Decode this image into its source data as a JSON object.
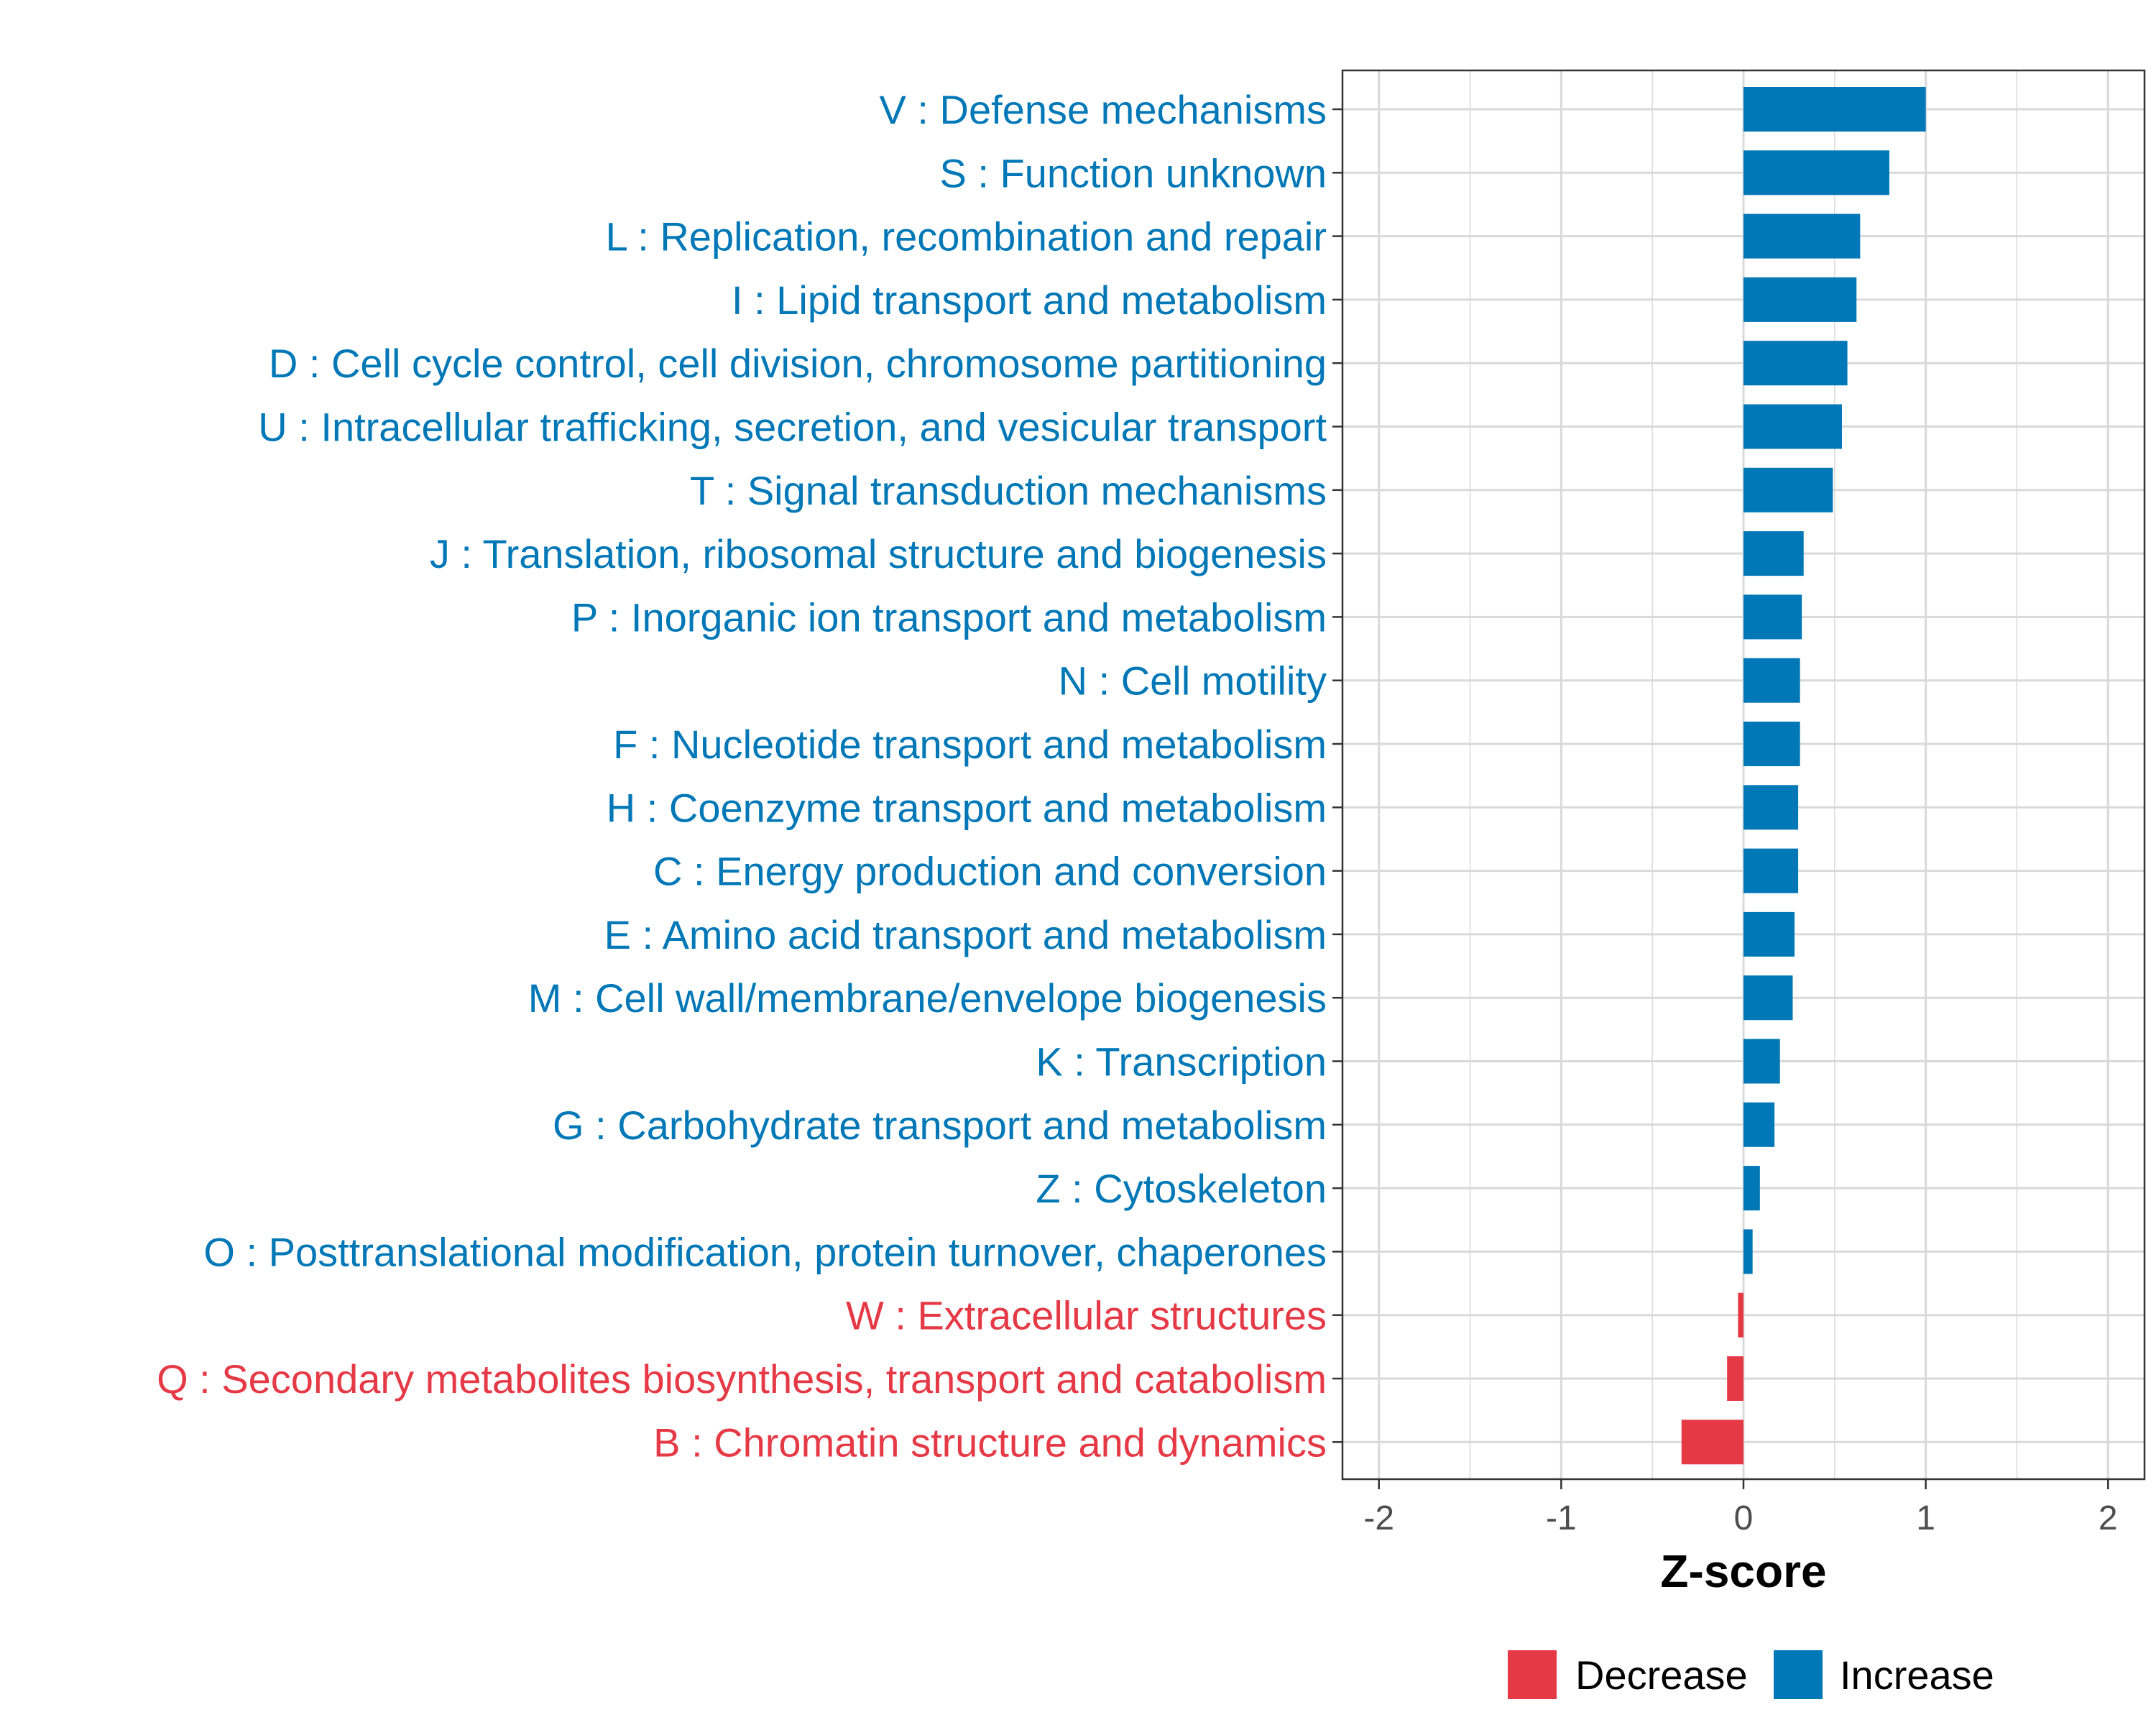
{
  "chart_data": {
    "type": "bar",
    "orientation": "horizontal",
    "title": "",
    "xlabel": "Z-score",
    "ylabel": "",
    "xlim": [
      -2.2,
      2.2
    ],
    "xticks": [
      -2,
      -1,
      0,
      1,
      2
    ],
    "xtick_labels": [
      "-2",
      "-1",
      "0",
      "1",
      "2"
    ],
    "grid": true,
    "categories": [
      "V : Defense mechanisms",
      "S : Function unknown",
      "L : Replication, recombination and repair",
      "I : Lipid transport and metabolism",
      "D : Cell cycle control, cell division, chromosome partitioning",
      "U : Intracellular trafficking, secretion, and vesicular transport",
      "T : Signal transduction mechanisms",
      "J : Translation, ribosomal structure and biogenesis",
      "P : Inorganic ion transport and metabolism",
      "N : Cell motility",
      "F : Nucleotide transport and metabolism",
      "H : Coenzyme transport and metabolism",
      "C : Energy production and conversion",
      "E : Amino acid transport and metabolism",
      "M : Cell wall/membrane/envelope biogenesis",
      "K : Transcription",
      "G : Carbohydrate transport and metabolism",
      "Z : Cytoskeleton",
      "O : Posttranslational modification, protein turnover, chaperones",
      "W : Extracellular structures",
      "Q : Secondary metabolites biosynthesis, transport and catabolism",
      "B : Chromatin structure and dynamics"
    ],
    "values": [
      1.0,
      0.8,
      0.64,
      0.62,
      0.57,
      0.54,
      0.49,
      0.33,
      0.32,
      0.31,
      0.31,
      0.3,
      0.3,
      0.28,
      0.27,
      0.2,
      0.17,
      0.09,
      0.05,
      -0.03,
      -0.09,
      -0.34
    ],
    "groups": [
      "Increase",
      "Increase",
      "Increase",
      "Increase",
      "Increase",
      "Increase",
      "Increase",
      "Increase",
      "Increase",
      "Increase",
      "Increase",
      "Increase",
      "Increase",
      "Increase",
      "Increase",
      "Increase",
      "Increase",
      "Increase",
      "Increase",
      "Decrease",
      "Decrease",
      "Decrease"
    ],
    "legend": {
      "position": "bottom",
      "entries": [
        {
          "label": "Decrease",
          "color": "#E63946"
        },
        {
          "label": "Increase",
          "color": "#0077B6"
        }
      ]
    }
  },
  "colors": {
    "Increase": "#0077B6",
    "Decrease": "#E63946",
    "grid": "#d9d9d9",
    "panel_border": "#333333"
  }
}
